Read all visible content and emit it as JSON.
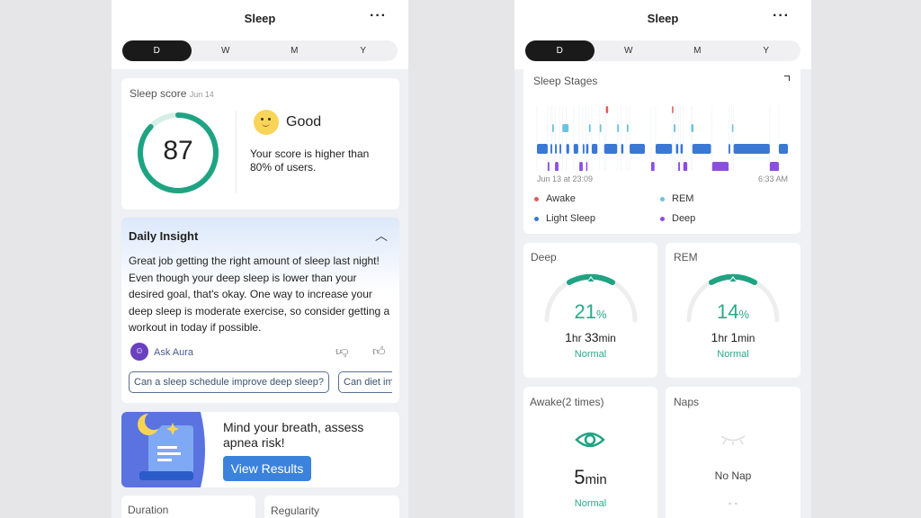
{
  "left": {
    "header": {
      "title": "Sleep",
      "more_icon": "ellipsis-icon"
    },
    "tabs": [
      {
        "label": "D",
        "active": true
      },
      {
        "label": "W"
      },
      {
        "label": "M"
      },
      {
        "label": "Y"
      }
    ],
    "score": {
      "label": "Sleep score",
      "date": "Jun 14",
      "value": "87",
      "fraction": 0.87,
      "rating": "Good",
      "text": "Your score is higher than 80% of users."
    },
    "insight": {
      "title": "Daily Insight",
      "body": "Great job getting the right amount of sleep last night! Even though your deep sleep is lower than your desired goal, that's okay. One way to increase your deep sleep is moderate exercise, so consider getting a workout in today if possible.",
      "ask": "Ask Aura",
      "chips": [
        "Can a sleep schedule improve deep sleep?",
        "Can diet im"
      ]
    },
    "promo": {
      "text": "Mind your breath, assess apnea risk!",
      "button": "View Results"
    },
    "bottom": {
      "duration": "Duration",
      "regularity": "Regularity"
    }
  },
  "right": {
    "header": {
      "title": "Sleep"
    },
    "tabs": [
      {
        "label": "D",
        "active": true
      },
      {
        "label": "W"
      },
      {
        "label": "M"
      },
      {
        "label": "Y"
      }
    ],
    "stages": {
      "title": "Sleep Stages",
      "start_label": "Jun 13 at 23:09",
      "end_label": "6:33 AM",
      "start": "23:09",
      "end": "06:33",
      "legend": [
        {
          "name": "Awake",
          "color": "#e25b57"
        },
        {
          "name": "REM",
          "color": "#6cc3de"
        },
        {
          "name": "Light Sleep",
          "color": "#3a78d4"
        },
        {
          "name": "Deep",
          "color": "#8b4fe0"
        }
      ],
      "segments": {
        "Light": [
          [
            "23:09",
            "23:28"
          ],
          [
            "23:33",
            "23:36"
          ],
          [
            "23:41",
            "23:44"
          ],
          [
            "23:49",
            "23:52"
          ],
          [
            "00:01",
            "00:06"
          ],
          [
            "00:14",
            "00:22"
          ],
          [
            "00:30",
            "00:33"
          ],
          [
            "00:36",
            "00:40"
          ],
          [
            "00:46",
            "00:56"
          ],
          [
            "01:08",
            "01:31"
          ],
          [
            "01:38",
            "01:42"
          ],
          [
            "01:53",
            "02:20"
          ],
          [
            "02:39",
            "03:08"
          ],
          [
            "03:15",
            "03:19"
          ],
          [
            "03:23",
            "03:27"
          ],
          [
            "03:44",
            "04:17"
          ],
          [
            "04:48",
            "04:51"
          ],
          [
            "04:57",
            "06:01"
          ],
          [
            "06:17",
            "06:33"
          ]
        ],
        "REM": [
          [
            "23:36",
            "23:39"
          ],
          [
            "23:54",
            "00:05"
          ],
          [
            "00:41",
            "00:44"
          ],
          [
            "01:00",
            "01:03"
          ],
          [
            "01:31",
            "01:34"
          ],
          [
            "01:48",
            "01:51"
          ],
          [
            "03:11",
            "03:14"
          ],
          [
            "03:42",
            "03:46"
          ],
          [
            "04:54",
            "04:56"
          ]
        ],
        "Deep": [
          [
            "23:28",
            "23:31"
          ],
          [
            "23:41",
            "23:47"
          ],
          [
            "00:24",
            "00:30"
          ],
          [
            "00:36",
            "00:38"
          ],
          [
            "02:31",
            "02:37"
          ],
          [
            "03:19",
            "03:22"
          ],
          [
            "03:28",
            "03:35"
          ],
          [
            "04:19",
            "04:48"
          ],
          [
            "06:01",
            "06:17"
          ]
        ],
        "Awake": [
          [
            "01:11",
            "01:15"
          ],
          [
            "03:08",
            "03:09"
          ]
        ]
      }
    },
    "deep": {
      "label": "Deep",
      "pct": "21",
      "unit": "%",
      "hr": "1",
      "min": "33",
      "hr_unit": "hr ",
      "min_unit": "min",
      "status": "Normal"
    },
    "rem": {
      "label": "REM",
      "pct": "14",
      "unit": "%",
      "hr": "1",
      "min": "1",
      "hr_unit": "hr ",
      "min_unit": "min",
      "status": "Normal"
    },
    "awake": {
      "label": "Awake(2 times)",
      "value": "5",
      "unit": "min",
      "status": "Normal"
    },
    "naps": {
      "label": "Naps",
      "value": "No Nap",
      "sub": "- -"
    },
    "accent": "#1fa383"
  }
}
